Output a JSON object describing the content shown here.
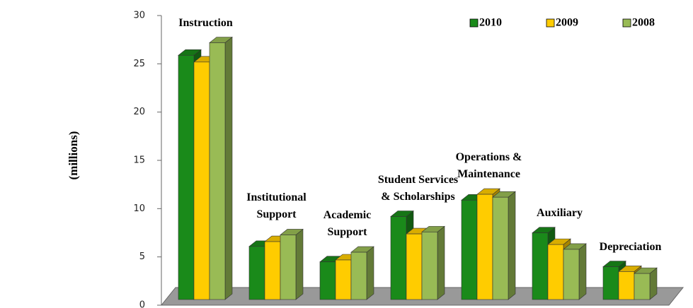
{
  "chart_data": {
    "type": "bar3d",
    "y_label": "(millions)",
    "categories": [
      "Instruction",
      "Institutional Support",
      "Academic Support",
      "Student Services & Scholarships",
      "Operations & Maintenance",
      "Auxiliary",
      "Depreciation"
    ],
    "series": [
      {
        "name": "2010",
        "color": "#1a8a1a",
        "values": [
          26,
          6.2,
          4.6,
          9.3,
          11.0,
          7.6,
          4.1
        ]
      },
      {
        "name": "2009",
        "color": "#ffcc00",
        "values": [
          25.3,
          6.7,
          4.8,
          7.5,
          11.6,
          6.4,
          3.6
        ]
      },
      {
        "name": "2008",
        "color": "#99bb55",
        "values": [
          27.3,
          7.4,
          5.6,
          7.7,
          11.3,
          5.9,
          3.4
        ]
      }
    ],
    "ylim": [
      0,
      30
    ],
    "yticks": [
      0,
      5,
      10,
      15,
      20,
      25,
      30
    ],
    "legend": "top-right"
  }
}
